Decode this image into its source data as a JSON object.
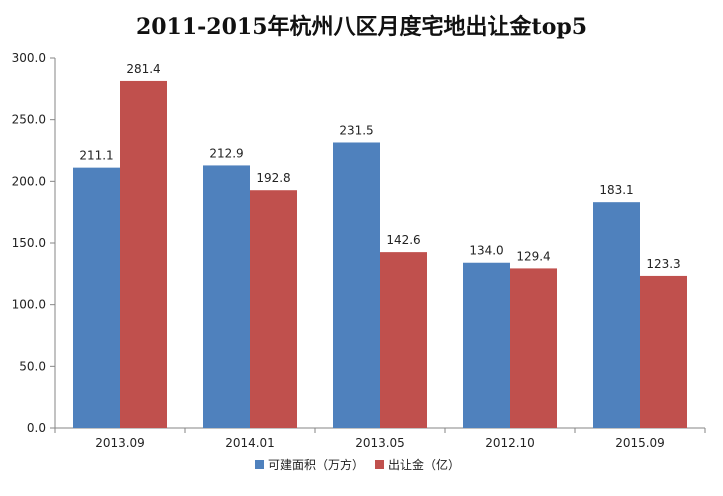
{
  "chart_data": {
    "type": "bar",
    "title": "2011-2015年杭州八区月度宅地出让金top5",
    "xlabel": "",
    "ylabel": "",
    "categories": [
      "2013.09",
      "2014.01",
      "2013.05",
      "2012.10",
      "2015.09"
    ],
    "series": [
      {
        "name": "可建面积（万方）",
        "color": "#4f81bd",
        "values": [
          211.1,
          212.9,
          231.5,
          134.0,
          183.1
        ],
        "labels": [
          "211.1",
          "212.9",
          "231.5",
          "134.0",
          "183.1"
        ]
      },
      {
        "name": "出让金（亿）",
        "color": "#c0504d",
        "values": [
          281.4,
          192.8,
          142.6,
          129.4,
          123.3
        ],
        "labels": [
          "281.4",
          "192.8",
          "142.6",
          "129.4",
          "123.3"
        ]
      }
    ],
    "ylim": [
      0,
      300
    ],
    "yticks": [
      0,
      50,
      100,
      150,
      200,
      250,
      300
    ],
    "ytick_labels": [
      "0.0",
      "50.0",
      "100.0",
      "150.0",
      "200.0",
      "250.0",
      "300.0"
    ],
    "legend_position": "bottom",
    "grid": false
  }
}
